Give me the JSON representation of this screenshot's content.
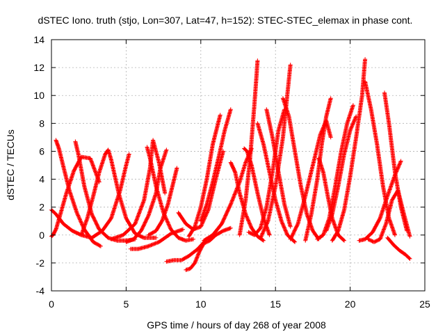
{
  "chart_data": {
    "type": "scatter",
    "title": "dSTEC Iono. truth (stjo, Lon=307, Lat=47, h=152): STEC-STEC_elemax in phase cont.",
    "xlabel": "GPS time / hours of day 268 of year 2008",
    "ylabel": "dSTEC  / TECUs",
    "xlim": [
      0,
      25
    ],
    "ylim": [
      -4,
      14
    ],
    "x_ticks": [
      0,
      5,
      10,
      15,
      20,
      25
    ],
    "y_ticks": [
      -4,
      -2,
      0,
      2,
      4,
      6,
      8,
      10,
      12,
      14
    ],
    "grid": true,
    "marker": "+",
    "color": "#ff0000",
    "arcs": [
      {
        "x": [
          0.0,
          0.1,
          0.3,
          0.6,
          1.0,
          1.5,
          2.0,
          2.6,
          3.2
        ],
        "y": [
          -0.1,
          0.0,
          0.4,
          1.5,
          3.0,
          4.6,
          5.6,
          5.5,
          3.8
        ]
      },
      {
        "x": [
          0.3,
          0.5,
          0.8,
          1.2,
          1.7,
          2.2,
          2.8,
          3.3
        ],
        "y": [
          6.8,
          6.2,
          4.9,
          3.2,
          1.6,
          0.4,
          -0.5,
          -0.8
        ]
      },
      {
        "x": [
          0.0,
          0.3,
          0.8,
          1.4,
          2.0,
          2.7,
          3.4,
          4.0,
          4.6,
          5.0,
          5.2
        ],
        "y": [
          1.8,
          1.5,
          0.8,
          0.3,
          0.0,
          -0.2,
          0.3,
          1.2,
          3.2,
          5.0,
          5.8
        ]
      },
      {
        "x": [
          1.6,
          1.8,
          2.2,
          2.7,
          3.2,
          3.8,
          4.4,
          5.0,
          5.6
        ],
        "y": [
          6.7,
          5.8,
          3.5,
          1.5,
          0.4,
          -0.2,
          -0.4,
          -0.4,
          -0.3
        ]
      },
      {
        "x": [
          2.0,
          2.4,
          2.8,
          3.2,
          3.6,
          3.8,
          4.0,
          4.5,
          5.0,
          5.6,
          6.2,
          7.0
        ],
        "y": [
          0.0,
          1.2,
          2.8,
          4.5,
          5.8,
          6.1,
          5.4,
          3.0,
          1.2,
          0.1,
          -0.2,
          -0.2
        ]
      },
      {
        "x": [
          4.0,
          4.8,
          5.6,
          6.2,
          6.6,
          6.8,
          7.2,
          7.6
        ],
        "y": [
          -0.3,
          0.0,
          0.8,
          2.5,
          4.8,
          6.8,
          5.2,
          3.0
        ]
      },
      {
        "x": [
          5.3,
          5.8,
          6.5,
          7.2,
          8.0,
          8.8
        ],
        "y": [
          -1.0,
          -1.0,
          -0.8,
          -0.5,
          0.1,
          0.4
        ]
      },
      {
        "x": [
          5.0,
          5.5,
          6.0,
          6.5,
          7.0,
          7.3,
          7.7
        ],
        "y": [
          -0.5,
          -0.3,
          0.3,
          1.4,
          3.0,
          4.8,
          6.1
        ]
      },
      {
        "x": [
          6.4,
          6.6,
          7.0,
          7.5,
          8.0,
          8.5,
          9.0,
          9.5
        ],
        "y": [
          6.3,
          5.5,
          3.5,
          1.6,
          0.4,
          -0.2,
          -0.4,
          -0.3
        ]
      },
      {
        "x": [
          6.5,
          7.0,
          7.4,
          7.8,
          8.1,
          8.4
        ],
        "y": [
          0.0,
          0.3,
          1.0,
          2.2,
          3.5,
          4.8
        ]
      },
      {
        "x": [
          7.7,
          8.2,
          8.7,
          9.2,
          9.8,
          10.4
        ],
        "y": [
          -1.9,
          -1.8,
          -1.8,
          -1.5,
          -1.0,
          -0.3
        ]
      },
      {
        "x": [
          9.0,
          9.3,
          9.6,
          9.9,
          10.2,
          10.6,
          11.0,
          11.5,
          12.0
        ],
        "y": [
          -2.5,
          -2.4,
          -2.0,
          -1.2,
          -0.6,
          -0.4,
          0.0,
          0.3,
          0.5
        ]
      },
      {
        "x": [
          9.2,
          9.6,
          10.0,
          10.4,
          10.8,
          11.3
        ],
        "y": [
          -0.1,
          0.6,
          2.0,
          4.0,
          6.5,
          8.6
        ]
      },
      {
        "x": [
          8.5,
          9.0,
          9.5,
          10.0,
          10.5,
          11.0,
          11.5
        ],
        "y": [
          1.6,
          0.8,
          0.4,
          0.6,
          1.8,
          4.0,
          6.0
        ]
      },
      {
        "x": [
          10.0,
          10.4,
          10.8,
          11.2,
          11.6,
          12.0
        ],
        "y": [
          1.0,
          2.2,
          3.8,
          5.6,
          7.5,
          9.0
        ]
      },
      {
        "x": [
          10.2,
          10.8,
          11.4,
          12.0,
          12.6,
          13.0,
          13.4
        ],
        "y": [
          -0.4,
          0.0,
          0.8,
          2.2,
          3.8,
          5.2,
          6.2
        ]
      },
      {
        "x": [
          12.0,
          12.3,
          12.6,
          13.0,
          13.4,
          13.8,
          14.2
        ],
        "y": [
          5.2,
          4.5,
          3.0,
          1.5,
          0.5,
          -0.1,
          -0.4
        ]
      },
      {
        "x": [
          12.6,
          13.0,
          13.3,
          13.6,
          13.8
        ],
        "y": [
          0.0,
          2.5,
          5.5,
          9.5,
          12.5
        ]
      },
      {
        "x": [
          12.9,
          13.1,
          13.4,
          13.8,
          14.2,
          14.6
        ],
        "y": [
          6.2,
          6.0,
          5.0,
          3.0,
          1.2,
          0.0
        ]
      },
      {
        "x": [
          13.2,
          13.6,
          14.0,
          14.4,
          14.8,
          15.2,
          15.6
        ],
        "y": [
          0.2,
          0.0,
          0.5,
          2.0,
          4.5,
          7.5,
          9.0
        ]
      },
      {
        "x": [
          14.0,
          14.5,
          15.0,
          15.5,
          16.0
        ],
        "y": [
          -0.2,
          1.0,
          3.5,
          7.0,
          12.2
        ]
      },
      {
        "x": [
          13.8,
          14.2,
          14.6,
          15.0,
          15.4,
          15.8,
          16.3
        ],
        "y": [
          8.0,
          6.5,
          4.5,
          2.5,
          1.0,
          0.0,
          -0.5
        ]
      },
      {
        "x": [
          14.4,
          14.8,
          15.2,
          15.6,
          16.0
        ],
        "y": [
          9.0,
          7.0,
          4.5,
          2.2,
          0.6
        ]
      },
      {
        "x": [
          15.5,
          15.9,
          16.3,
          16.7,
          17.1,
          17.5,
          17.9
        ],
        "y": [
          9.8,
          8.5,
          6.0,
          3.5,
          1.5,
          0.3,
          -0.3
        ]
      },
      {
        "x": [
          16.0,
          16.5,
          17.0,
          17.5,
          18.0,
          18.4,
          18.7
        ],
        "y": [
          -0.3,
          0.8,
          2.8,
          5.0,
          7.2,
          8.2,
          7.0
        ]
      },
      {
        "x": [
          17.0,
          17.4,
          17.8,
          18.1,
          18.4,
          18.7
        ],
        "y": [
          -0.4,
          1.5,
          4.0,
          6.5,
          8.5,
          9.8
        ]
      },
      {
        "x": [
          17.9,
          18.2,
          18.5,
          18.8,
          19.2,
          19.6
        ],
        "y": [
          5.5,
          4.5,
          2.8,
          1.2,
          0.0,
          -0.4
        ]
      },
      {
        "x": [
          17.8,
          18.2,
          18.6,
          19.0,
          19.4,
          19.8,
          20.2
        ],
        "y": [
          -0.3,
          0.0,
          1.2,
          3.5,
          6.0,
          8.0,
          9.3
        ]
      },
      {
        "x": [
          18.4,
          18.8,
          19.2,
          19.6,
          20.0,
          20.4
        ],
        "y": [
          0.3,
          1.5,
          3.5,
          5.8,
          7.5,
          8.5
        ]
      },
      {
        "x": [
          18.8,
          19.2,
          19.6,
          20.0,
          20.4,
          20.8,
          21.0
        ],
        "y": [
          -0.4,
          0.3,
          1.8,
          4.2,
          7.0,
          10.0,
          12.6
        ]
      },
      {
        "x": [
          20.6,
          21.0,
          21.5,
          22.0,
          22.5,
          23.0,
          23.4
        ],
        "y": [
          -0.4,
          -0.3,
          0.2,
          1.2,
          2.8,
          4.3,
          5.3
        ]
      },
      {
        "x": [
          21.0,
          21.4,
          21.8,
          22.2,
          22.6,
          23.0
        ],
        "y": [
          11.0,
          9.0,
          6.5,
          3.5,
          1.2,
          0.0
        ]
      },
      {
        "x": [
          21.2,
          21.6,
          22.0,
          22.4,
          22.8,
          23.2,
          23.6,
          24.0
        ],
        "y": [
          -0.3,
          -0.5,
          -0.3,
          0.8,
          2.5,
          3.2,
          1.5,
          -0.1
        ]
      },
      {
        "x": [
          22.3,
          22.6,
          23.0,
          23.4,
          23.8
        ],
        "y": [
          10.2,
          8.0,
          4.5,
          2.0,
          0.3
        ]
      },
      {
        "x": [
          22.5,
          22.9,
          23.3,
          23.7,
          24.0
        ],
        "y": [
          -0.2,
          -0.7,
          -1.1,
          -1.4,
          -1.7
        ]
      }
    ]
  }
}
